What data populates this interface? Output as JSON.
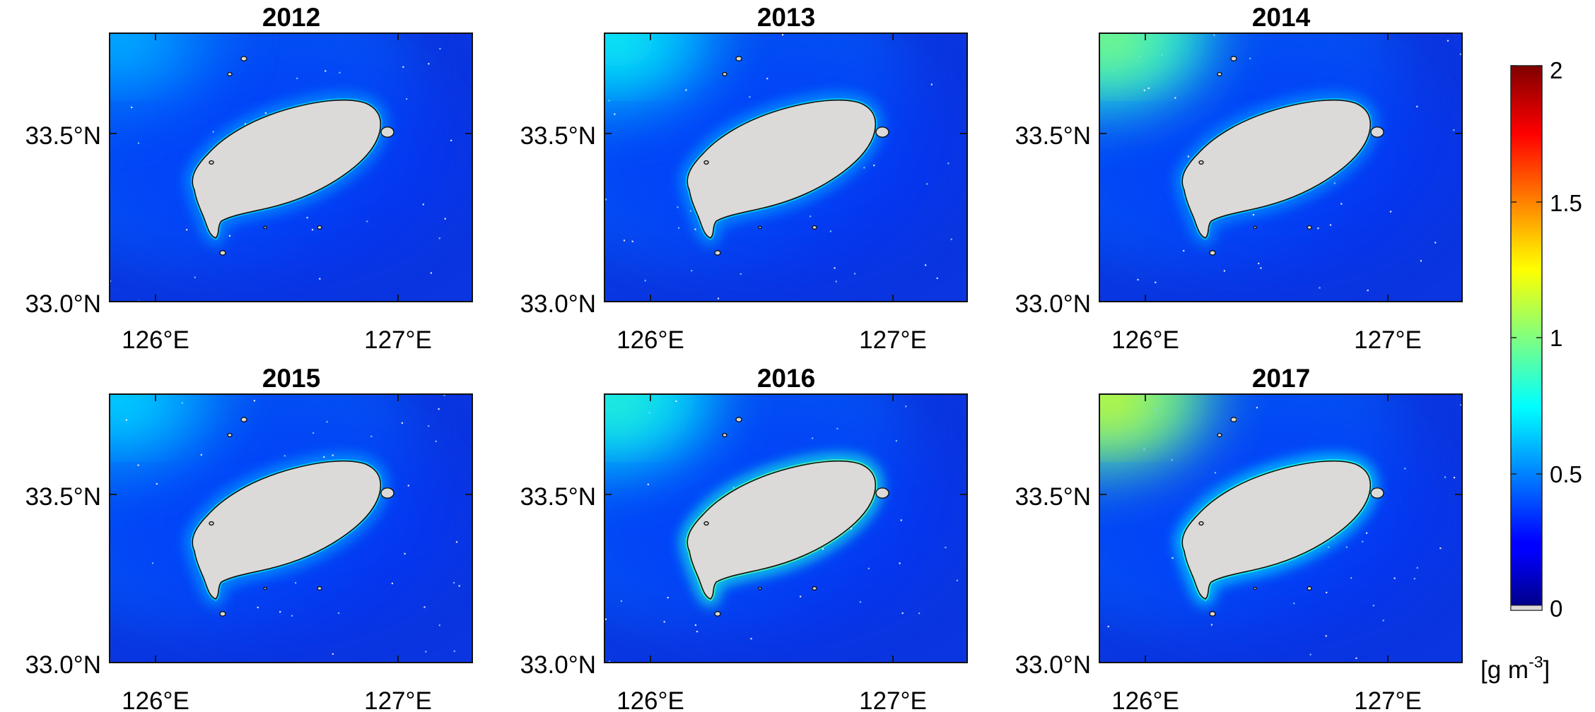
{
  "figure": {
    "panels": [
      {
        "title": "2012",
        "northwest_intensity": 0.62,
        "coast_intensity": 0.3
      },
      {
        "title": "2013",
        "northwest_intensity": 0.78,
        "coast_intensity": 0.32
      },
      {
        "title": "2014",
        "northwest_intensity": 1.05,
        "coast_intensity": 0.3
      },
      {
        "title": "2015",
        "northwest_intensity": 0.7,
        "coast_intensity": 0.32
      },
      {
        "title": "2016",
        "northwest_intensity": 0.85,
        "coast_intensity": 0.55
      },
      {
        "title": "2017",
        "northwest_intensity": 1.2,
        "coast_intensity": 0.45
      }
    ],
    "x_ticks": [
      "126°E",
      "127°E"
    ],
    "y_ticks": [
      "33.5°N",
      "33.0°N"
    ],
    "colorbar": {
      "ticks": [
        "2",
        "1.5",
        "1",
        "0.5",
        "0"
      ],
      "unit": "[g m",
      "unit_superscript": "-3",
      "unit_close": "]",
      "colors": {
        "land": "#dcdad8",
        "background_sea": "#0a35e0"
      }
    }
  }
}
